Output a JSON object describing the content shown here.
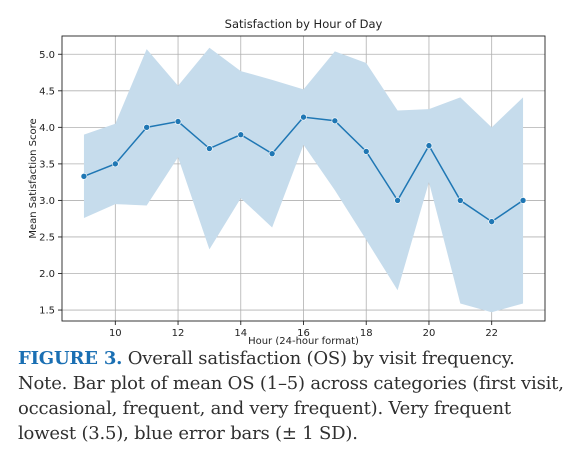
{
  "chart_data": {
    "type": "line",
    "title": "Satisfaction by Hour of Day",
    "xlabel": "Hour (24-hour format)",
    "ylabel": "Mean Satisfaction Score",
    "xlim": [
      8.3,
      23.7
    ],
    "ylim": [
      1.35,
      5.25
    ],
    "xticks": [
      10,
      12,
      14,
      16,
      18,
      20,
      22
    ],
    "yticks": [
      1.5,
      2.0,
      2.5,
      3.0,
      3.5,
      4.0,
      4.5,
      5.0
    ],
    "grid": true,
    "series": [
      {
        "x": [
          9,
          10,
          11,
          12,
          13,
          14,
          15,
          16,
          17,
          18,
          19,
          20,
          21,
          22,
          23
        ],
        "values": [
          3.33,
          3.5,
          4.0,
          4.08,
          3.71,
          3.9,
          3.64,
          4.14,
          4.09,
          3.67,
          3.0,
          3.75,
          3.0,
          2.71,
          3.0
        ],
        "upper": [
          3.9,
          4.05,
          5.07,
          4.57,
          5.09,
          4.77,
          4.65,
          4.52,
          5.04,
          4.88,
          4.23,
          4.25,
          4.41,
          4.0,
          4.41
        ],
        "lower": [
          2.76,
          2.95,
          2.93,
          3.59,
          2.33,
          3.03,
          2.63,
          3.76,
          3.14,
          2.46,
          1.77,
          3.25,
          1.59,
          1.47,
          1.59
        ],
        "color": "#1f77b4",
        "band_color": "#c6dcec"
      }
    ]
  },
  "caption": {
    "label": "FIGURE 3.",
    "text": " Overall satisfaction (OS) by visit frequency. Note. Bar plot of mean OS (1–5) across categories (first visit, occasional, frequent, and very frequent). Very frequent lowest (3.5), blue error bars (± 1 SD)."
  }
}
